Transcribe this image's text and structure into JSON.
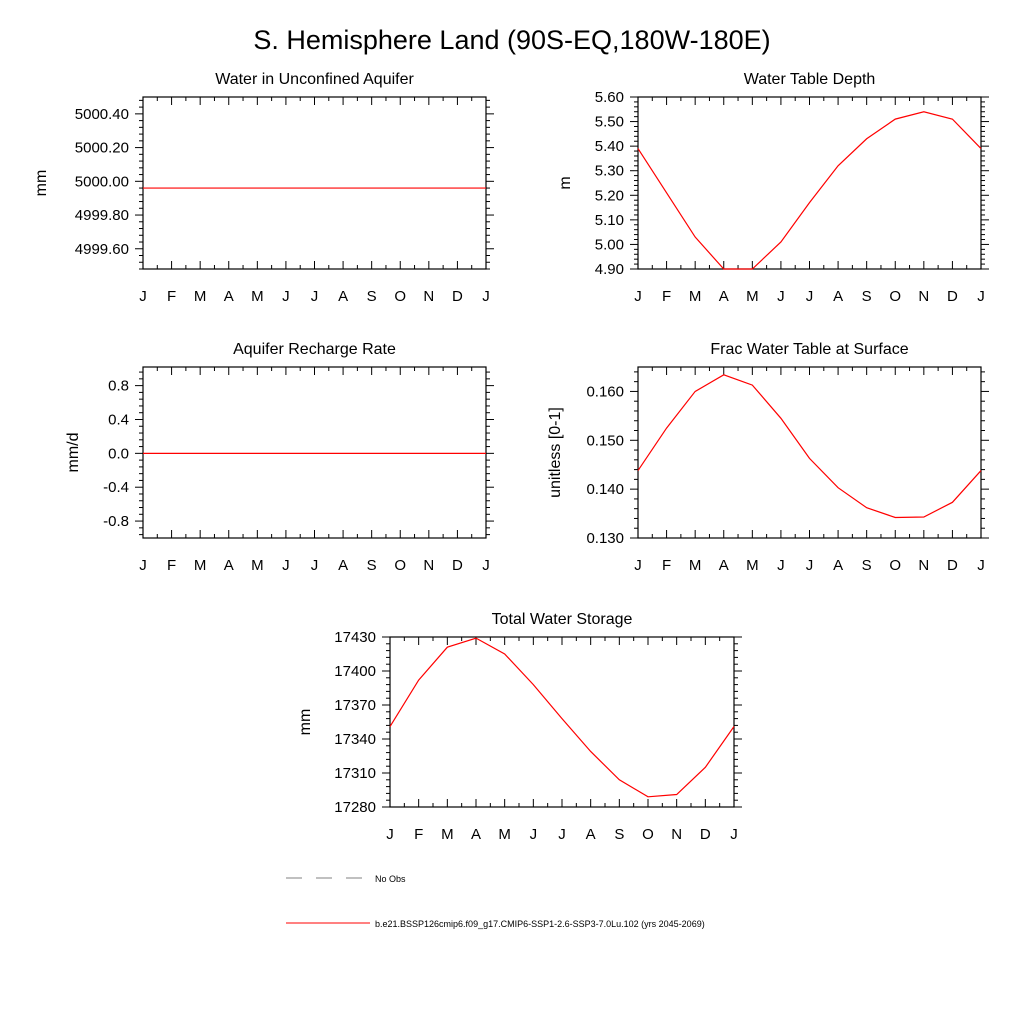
{
  "figure": {
    "title": "S. Hemisphere Land (90S-EQ,180W-180E)"
  },
  "months": [
    "J",
    "F",
    "M",
    "A",
    "M",
    "J",
    "J",
    "A",
    "S",
    "O",
    "N",
    "D",
    "J"
  ],
  "chart_data": [
    {
      "type": "line",
      "title": "Water in Unconfined Aquifer",
      "xlabel": "",
      "ylabel": "mm",
      "ylim": [
        4999.48,
        5000.5
      ],
      "yticks": [
        4999.6,
        4999.8,
        5000.0,
        5000.2,
        5000.4
      ],
      "yticklabels": [
        "4999.60",
        "4999.80",
        "5000.00",
        "5000.20",
        "5000.40"
      ],
      "series": [
        {
          "color": "#ff0000",
          "values": [
            4999.96,
            4999.96,
            4999.96,
            4999.96,
            4999.96,
            4999.96,
            4999.96,
            4999.96,
            4999.96,
            4999.96,
            4999.96,
            4999.96,
            4999.96
          ]
        }
      ]
    },
    {
      "type": "line",
      "title": "Water Table Depth",
      "xlabel": "",
      "ylabel": "m",
      "ylim": [
        4.9,
        5.6
      ],
      "yticks": [
        4.9,
        5.0,
        5.1,
        5.2,
        5.3,
        5.4,
        5.5,
        5.6
      ],
      "yticklabels": [
        "4.90",
        "5.00",
        "5.10",
        "5.20",
        "5.30",
        "5.40",
        "5.50",
        "5.60"
      ],
      "series": [
        {
          "color": "#ff0000",
          "values": [
            5.39,
            5.21,
            5.03,
            4.9,
            4.9,
            5.01,
            5.17,
            5.32,
            5.43,
            5.51,
            5.54,
            5.51,
            5.39
          ]
        }
      ]
    },
    {
      "type": "line",
      "title": "Aquifer Recharge Rate",
      "xlabel": "",
      "ylabel": "mm/d",
      "ylim": [
        -1.0,
        1.02
      ],
      "yticks": [
        -0.8,
        -0.4,
        0.0,
        0.4,
        0.8
      ],
      "yticklabels": [
        "-0.8",
        "-0.4",
        "0.0",
        "0.4",
        "0.8"
      ],
      "series": [
        {
          "color": "#ff0000",
          "values": [
            0,
            0,
            0,
            0,
            0,
            0,
            0,
            0,
            0,
            0,
            0,
            0,
            0
          ]
        }
      ]
    },
    {
      "type": "line",
      "title": "Frac Water Table at Surface",
      "xlabel": "",
      "ylabel": "unitless [0-1]",
      "ylim": [
        0.13,
        0.165
      ],
      "yticks": [
        0.13,
        0.14,
        0.15,
        0.16
      ],
      "yticklabels": [
        "0.130",
        "0.140",
        "0.150",
        "0.160"
      ],
      "series": [
        {
          "color": "#ff0000",
          "values": [
            0.1438,
            0.1525,
            0.16,
            0.1634,
            0.1613,
            0.1545,
            0.1463,
            0.1403,
            0.1362,
            0.1342,
            0.1343,
            0.1373,
            0.1438
          ]
        }
      ]
    },
    {
      "type": "line",
      "title": "Total Water Storage",
      "xlabel": "",
      "ylabel": "mm",
      "ylim": [
        17280,
        17430
      ],
      "yticks": [
        17280,
        17310,
        17340,
        17370,
        17400,
        17430
      ],
      "yticklabels": [
        "17280",
        "17310",
        "17340",
        "17370",
        "17400",
        "17430"
      ],
      "series": [
        {
          "color": "#ff0000",
          "values": [
            17351,
            17392,
            17421,
            17429,
            17415,
            17388,
            17358,
            17329,
            17304,
            17289,
            17291,
            17315,
            17351
          ]
        }
      ]
    }
  ],
  "legend": {
    "entries": [
      {
        "label": "No Obs",
        "color": "#808080",
        "style": "dashed"
      },
      {
        "label": "b.e21.BSSP126cmip6.f09_g17.CMIP6-SSP1-2.6-SSP3-7.0Lu.102 (yrs 2045-2069)",
        "color": "#ff0000",
        "style": "solid"
      }
    ]
  }
}
